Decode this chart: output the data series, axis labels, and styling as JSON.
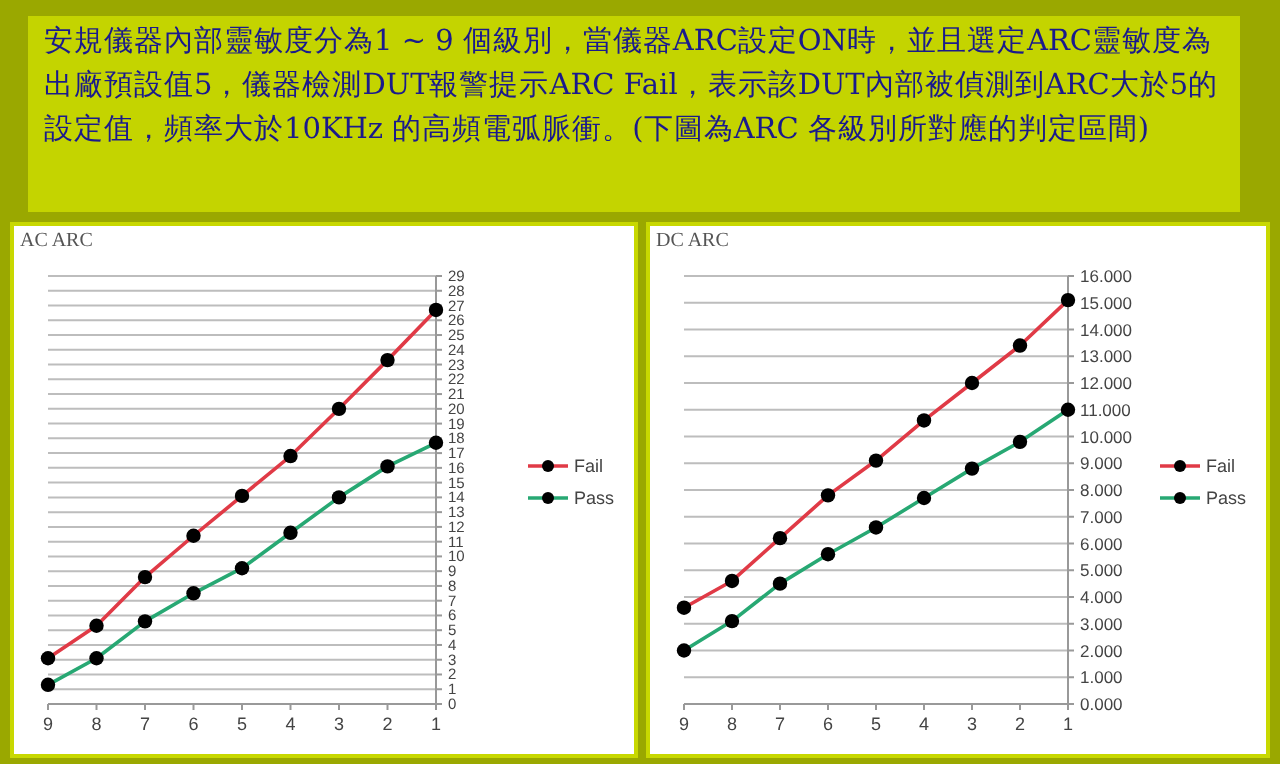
{
  "chart_data": [
    {
      "type": "line",
      "title": "AC ARC",
      "annotations": [
        "安規儀器內部靈敏度分為1 ~ 9 個級別，當儀器ARC設定ON時，並且選定ARC靈敏度為出廠預設值5，儀器檢測DUT報警提示ARC Fail，表示該DUT內部被偵測到ARC大於5的設定值，頻率大於10KHz 的高頻電弧脈衝。(下圖為ARC 各級別所對應的判定區間)"
      ],
      "categories": [
        "9",
        "8",
        "7",
        "6",
        "5",
        "4",
        "3",
        "2",
        "1"
      ],
      "series": [
        {
          "name": "Fail",
          "color": "#e03a46",
          "values": [
            3.1,
            5.3,
            8.6,
            11.4,
            14.1,
            16.8,
            20.0,
            23.3,
            26.7
          ]
        },
        {
          "name": "Pass",
          "color": "#27a873",
          "values": [
            1.3,
            3.1,
            5.6,
            7.5,
            9.2,
            11.6,
            14.0,
            16.1,
            17.7
          ]
        }
      ],
      "ylim": [
        0,
        29
      ],
      "yticks": [
        0,
        1,
        2,
        3,
        4,
        5,
        6,
        7,
        8,
        9,
        10,
        11,
        12,
        13,
        14,
        15,
        16,
        17,
        18,
        19,
        20,
        21,
        22,
        23,
        24,
        25,
        26,
        27,
        28,
        29
      ],
      "grid": "y",
      "legend": "right",
      "marker": "circle",
      "line_style": "solid"
    },
    {
      "type": "line",
      "title": "DC ARC",
      "categories": [
        "9",
        "8",
        "7",
        "6",
        "5",
        "4",
        "3",
        "2",
        "1"
      ],
      "series": [
        {
          "name": "Fail",
          "color": "#e03a46",
          "values": [
            3.6,
            4.6,
            6.2,
            7.8,
            9.1,
            10.6,
            12.0,
            13.4,
            15.1
          ]
        },
        {
          "name": "Pass",
          "color": "#27a873",
          "values": [
            2.0,
            3.1,
            4.5,
            5.6,
            6.6,
            7.7,
            8.8,
            9.8,
            11.0
          ]
        }
      ],
      "ylim": [
        0,
        16
      ],
      "yticks": [
        {
          "value": 0,
          "label": "0.000"
        },
        {
          "value": 1,
          "label": "1.000"
        },
        {
          "value": 2,
          "label": "2.000"
        },
        {
          "value": 3,
          "label": "3.000"
        },
        {
          "value": 4,
          "label": "4.000"
        },
        {
          "value": 5,
          "label": "5.000"
        },
        {
          "value": 6,
          "label": "6.000"
        },
        {
          "value": 7,
          "label": "7.000"
        },
        {
          "value": 8,
          "label": "8.000"
        },
        {
          "value": 9,
          "label": "9.000"
        },
        {
          "value": 10,
          "label": "10.000"
        },
        {
          "value": 11,
          "label": "11.000"
        },
        {
          "value": 12,
          "label": "12.000"
        },
        {
          "value": 13,
          "label": "13.000"
        },
        {
          "value": 14,
          "label": "14.000"
        },
        {
          "value": 15,
          "label": "15.000"
        },
        {
          "value": 16,
          "label": "16.000"
        }
      ],
      "grid": "y",
      "legend": "right",
      "marker": "circle",
      "line_style": "solid"
    }
  ]
}
